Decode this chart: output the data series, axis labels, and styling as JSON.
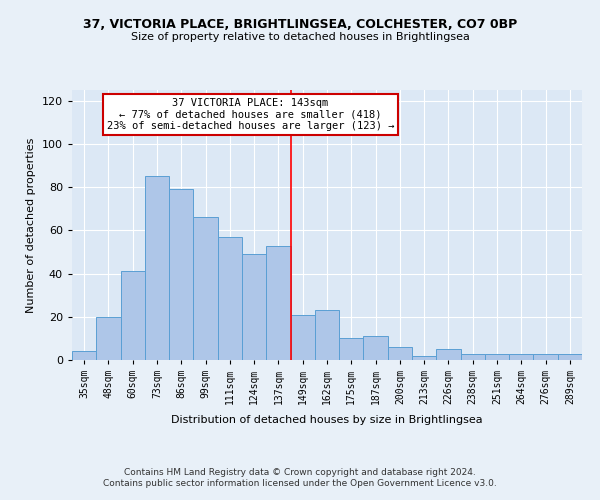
{
  "title_line1": "37, VICTORIA PLACE, BRIGHTLINGSEA, COLCHESTER, CO7 0BP",
  "title_line2": "Size of property relative to detached houses in Brightlingsea",
  "xlabel": "Distribution of detached houses by size in Brightlingsea",
  "ylabel": "Number of detached properties",
  "categories": [
    "35sqm",
    "48sqm",
    "60sqm",
    "73sqm",
    "86sqm",
    "99sqm",
    "111sqm",
    "124sqm",
    "137sqm",
    "149sqm",
    "162sqm",
    "175sqm",
    "187sqm",
    "200sqm",
    "213sqm",
    "226sqm",
    "238sqm",
    "251sqm",
    "264sqm",
    "276sqm",
    "289sqm"
  ],
  "values": [
    4,
    20,
    41,
    85,
    79,
    66,
    57,
    49,
    53,
    21,
    23,
    10,
    11,
    6,
    2,
    5,
    3,
    3,
    3,
    3,
    3
  ],
  "bar_color": "#aec6e8",
  "bar_edge_color": "#5a9fd4",
  "ylim": [
    0,
    125
  ],
  "yticks": [
    0,
    20,
    40,
    60,
    80,
    100,
    120
  ],
  "red_line_x": 8.5,
  "annotation_title": "37 VICTORIA PLACE: 143sqm",
  "annotation_line2": "← 77% of detached houses are smaller (418)",
  "annotation_line3": "23% of semi-detached houses are larger (123) →",
  "annotation_box_color": "#ffffff",
  "annotation_box_edge_color": "#cc0000",
  "footer_line1": "Contains HM Land Registry data © Crown copyright and database right 2024.",
  "footer_line2": "Contains public sector information licensed under the Open Government Licence v3.0.",
  "background_color": "#e8f0f8",
  "plot_background_color": "#dce8f5"
}
